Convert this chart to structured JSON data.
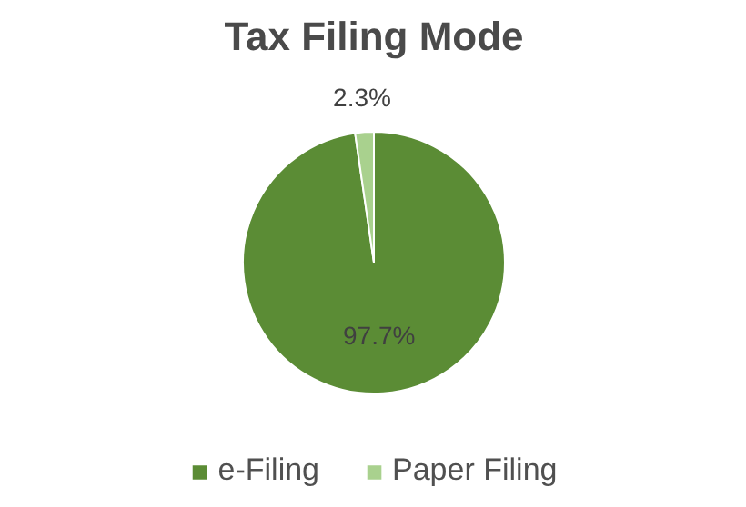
{
  "chart_data": {
    "type": "pie",
    "title": "Tax Filing Mode",
    "categories": [
      "e-Filing",
      "Paper Filing"
    ],
    "values": [
      97.7,
      2.3
    ],
    "colors": [
      "#5b8c35",
      "#a9d18e"
    ],
    "value_labels": [
      "97.7%",
      "2.3%"
    ],
    "legend": "bottom"
  }
}
